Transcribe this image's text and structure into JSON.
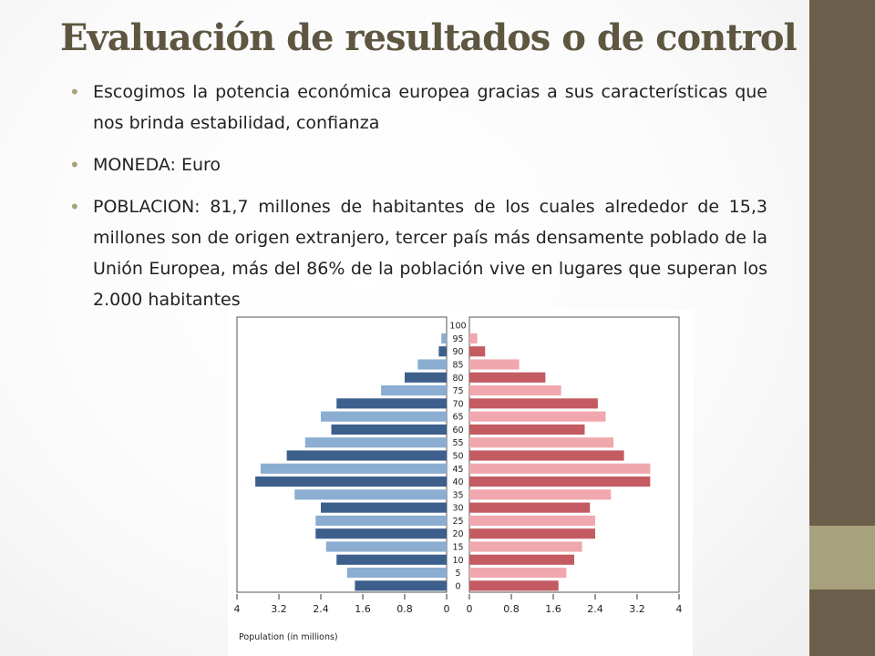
{
  "slide": {
    "title": "Evaluación de resultados o de control",
    "bullets": [
      "Escogimos la potencia económica europea gracias a sus características que nos brinda estabilidad, confianza",
      "MONEDA: Euro",
      "POBLACION: 81,7 millones de habitantes de los cuales alrededor de 15,3 millones son de origen extranjero, tercer país más densamente poblado de la Unión Europea, más del 86% de la población vive en lugares que superan los 2.000 habitantes"
    ],
    "colors": {
      "title": "#5e5641",
      "accent_dark": "#6b5f4b",
      "accent_light": "#a7a27d"
    }
  },
  "chart_data": {
    "type": "bar",
    "orientation": "horizontal-population-pyramid",
    "xlabel": "Population (in millions)",
    "age_groups": [
      "0",
      "5",
      "10",
      "15",
      "20",
      "25",
      "30",
      "35",
      "40",
      "45",
      "50",
      "55",
      "60",
      "65",
      "70",
      "75",
      "80",
      "85",
      "90",
      "95",
      "100"
    ],
    "x_ticks_left": [
      "4",
      "3.2",
      "2.4",
      "1.6",
      "0.8",
      "0"
    ],
    "x_ticks_right": [
      "0",
      "0.8",
      "1.6",
      "2.4",
      "3.2",
      "4"
    ],
    "xlim": [
      0,
      4
    ],
    "series": [
      {
        "side": "left",
        "colors": [
          "#3d5f8c",
          "#8badd1"
        ],
        "values": [
          1.75,
          1.9,
          2.1,
          2.3,
          2.5,
          2.5,
          2.4,
          2.9,
          3.65,
          3.55,
          3.05,
          2.7,
          2.2,
          2.4,
          2.1,
          1.25,
          0.8,
          0.55,
          0.15,
          0.1,
          0.0
        ]
      },
      {
        "side": "right",
        "colors": [
          "#c45a62",
          "#f0a8ae"
        ],
        "values": [
          1.7,
          1.85,
          2.0,
          2.15,
          2.4,
          2.4,
          2.3,
          2.7,
          3.45,
          3.45,
          2.95,
          2.75,
          2.2,
          2.6,
          2.45,
          1.75,
          1.45,
          0.95,
          0.3,
          0.15,
          0.0
        ]
      }
    ],
    "grid": false,
    "legend": "none"
  }
}
